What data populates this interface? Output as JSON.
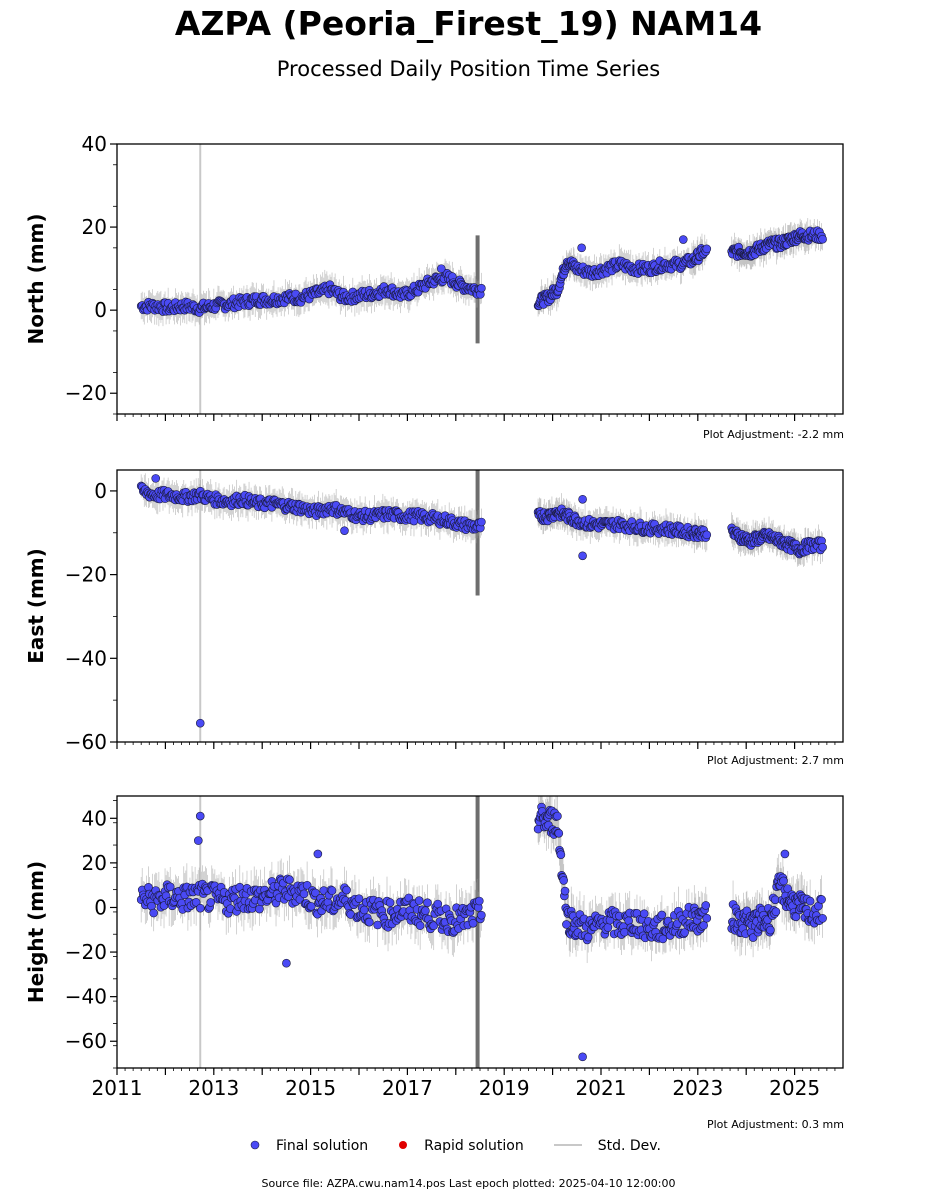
{
  "title": "AZPA (Peoria_Firest_19) NAM14",
  "subtitle": "Processed Daily Position Time Series",
  "legend": {
    "final": "Final solution",
    "rapid": "Rapid solution",
    "stddev": "Std. Dev."
  },
  "footer": "Source file: AZPA.cwu.nam14.pos  Last epoch plotted: 2025-04-10 12:00:00",
  "colors": {
    "final": "#4a4af5",
    "rapid": "#e00000",
    "stddev": "#c8c8c8",
    "outline": "#1a1a3a"
  },
  "chart_data": [
    {
      "type": "scatter",
      "ylabel": "North (mm)",
      "xlim": [
        2011,
        2026
      ],
      "ylim": [
        -25,
        40
      ],
      "yticks": [
        -20,
        0,
        20,
        40
      ],
      "xticks": [
        2011,
        2013,
        2015,
        2017,
        2019,
        2021,
        2023,
        2025
      ],
      "show_xtick_labels": false,
      "adjustment": "Plot Adjustment: -2.2 mm",
      "series": [
        {
          "name": "Final solution",
          "x": [
            2011.5,
            2011.8,
            2012.1,
            2012.4,
            2012.7,
            2013.0,
            2013.3,
            2013.6,
            2013.9,
            2014.2,
            2014.5,
            2014.8,
            2015.1,
            2015.4,
            2015.7,
            2016.0,
            2016.3,
            2016.6,
            2016.9,
            2017.2,
            2017.5,
            2017.8,
            2018.1,
            2018.4,
            2019.7,
            2019.9,
            2020.1,
            2020.3,
            2020.5,
            2020.8,
            2021.1,
            2021.4,
            2021.7,
            2022.0,
            2022.3,
            2022.6,
            2022.9,
            2023.1,
            2023.7,
            2023.9,
            2024.1,
            2024.3,
            2024.5,
            2024.7,
            2024.9,
            2025.1,
            2025.3
          ],
          "y": [
            1,
            1,
            0.5,
            1,
            0.5,
            1,
            1.5,
            2,
            2.5,
            2.5,
            3,
            3,
            4,
            5,
            3,
            3.5,
            4,
            5,
            3.5,
            5,
            7,
            8,
            6,
            5,
            2,
            3,
            5,
            12,
            10,
            9,
            10,
            11,
            10,
            10,
            11,
            11,
            12,
            14,
            14,
            14,
            14,
            15,
            16,
            16,
            17,
            18,
            18
          ]
        }
      ],
      "outliers": [
        {
          "x": 2017.7,
          "y": 10
        },
        {
          "x": 2020.6,
          "y": 15
        },
        {
          "x": 2022.7,
          "y": 17
        }
      ],
      "wide_stddev": [
        {
          "x": 2012.72,
          "low": -25,
          "high": 40
        },
        {
          "x": 2018.45,
          "low": -8,
          "high": 18
        }
      ]
    },
    {
      "type": "scatter",
      "ylabel": "East (mm)",
      "xlim": [
        2011,
        2026
      ],
      "ylim": [
        -60,
        5
      ],
      "yticks": [
        -60,
        -40,
        -20,
        0
      ],
      "xticks": [
        2011,
        2013,
        2015,
        2017,
        2019,
        2021,
        2023,
        2025
      ],
      "show_xtick_labels": false,
      "adjustment": "Plot Adjustment: 2.7 mm",
      "series": [
        {
          "name": "Final solution",
          "x": [
            2011.5,
            2011.8,
            2012.1,
            2012.4,
            2012.7,
            2013.0,
            2013.3,
            2013.6,
            2013.9,
            2014.2,
            2014.5,
            2014.8,
            2015.1,
            2015.4,
            2015.7,
            2016.0,
            2016.3,
            2016.6,
            2016.9,
            2017.2,
            2017.5,
            2017.8,
            2018.1,
            2018.4,
            2019.7,
            2019.9,
            2020.1,
            2020.3,
            2020.5,
            2020.8,
            2021.1,
            2021.4,
            2021.7,
            2022.0,
            2022.3,
            2022.6,
            2022.9,
            2023.1,
            2023.7,
            2023.9,
            2024.1,
            2024.3,
            2024.5,
            2024.7,
            2024.9,
            2025.1,
            2025.3
          ],
          "y": [
            0,
            -1,
            -1,
            -1.5,
            -1,
            -2,
            -2.5,
            -2,
            -3,
            -3,
            -3.5,
            -4,
            -5,
            -4,
            -5,
            -6,
            -6,
            -5.5,
            -6,
            -6,
            -6.5,
            -7,
            -8,
            -8.5,
            -6,
            -6,
            -5,
            -6,
            -7,
            -8,
            -8,
            -8,
            -8.5,
            -9,
            -9,
            -9.5,
            -10,
            -10,
            -10,
            -11,
            -12,
            -11,
            -11,
            -12,
            -13,
            -14,
            -13
          ]
        }
      ],
      "outliers": [
        {
          "x": 2012.72,
          "y": -55.5
        },
        {
          "x": 2011.8,
          "y": 3
        },
        {
          "x": 2015.7,
          "y": -9.5
        },
        {
          "x": 2020.62,
          "y": -15.5
        },
        {
          "x": 2020.62,
          "y": -2
        }
      ],
      "wide_stddev": [
        {
          "x": 2012.72,
          "low": -60,
          "high": 5
        },
        {
          "x": 2018.45,
          "low": -25,
          "high": 5
        }
      ]
    },
    {
      "type": "scatter",
      "ylabel": "Height (mm)",
      "xlim": [
        2011,
        2026
      ],
      "ylim": [
        -72,
        50
      ],
      "yticks": [
        -60,
        -40,
        -20,
        0,
        20,
        40
      ],
      "xticks": [
        2011,
        2013,
        2015,
        2017,
        2019,
        2021,
        2023,
        2025
      ],
      "show_xtick_labels": true,
      "adjustment": "Plot Adjustment: 0.3 mm",
      "series": [
        {
          "name": "Final solution",
          "x": [
            2011.5,
            2011.8,
            2012.1,
            2012.4,
            2012.7,
            2013.0,
            2013.3,
            2013.6,
            2013.9,
            2014.2,
            2014.5,
            2014.8,
            2015.1,
            2015.4,
            2015.7,
            2016.0,
            2016.3,
            2016.6,
            2016.9,
            2017.2,
            2017.5,
            2017.8,
            2018.1,
            2018.4,
            2019.7,
            2019.9,
            2020.1,
            2020.3,
            2020.5,
            2020.8,
            2021.1,
            2021.4,
            2021.7,
            2022.0,
            2022.3,
            2022.6,
            2022.9,
            2023.1,
            2023.7,
            2023.9,
            2024.1,
            2024.3,
            2024.5,
            2024.7,
            2024.9,
            2025.1,
            2025.3
          ],
          "y": [
            4,
            3,
            5,
            4,
            5,
            4,
            3,
            5,
            4,
            6,
            8,
            7,
            3,
            2,
            4,
            0,
            -2,
            -3,
            -1,
            -2,
            -4,
            -5,
            -6,
            -3,
            40,
            39,
            38,
            -5,
            -8,
            -10,
            -6,
            -8,
            -6,
            -10,
            -9,
            -7,
            -5,
            -5,
            -4,
            -6,
            -8,
            -6,
            -5,
            10,
            3,
            0,
            -2
          ]
        }
      ],
      "outliers": [
        {
          "x": 2012.72,
          "y": 41
        },
        {
          "x": 2012.68,
          "y": 30
        },
        {
          "x": 2014.5,
          "y": -25
        },
        {
          "x": 2020.62,
          "y": -67
        },
        {
          "x": 2024.8,
          "y": 24
        },
        {
          "x": 2015.15,
          "y": 24
        }
      ],
      "wide_stddev": [
        {
          "x": 2012.72,
          "low": -72,
          "high": 50
        },
        {
          "x": 2018.45,
          "low": -72,
          "high": 50
        }
      ]
    }
  ]
}
